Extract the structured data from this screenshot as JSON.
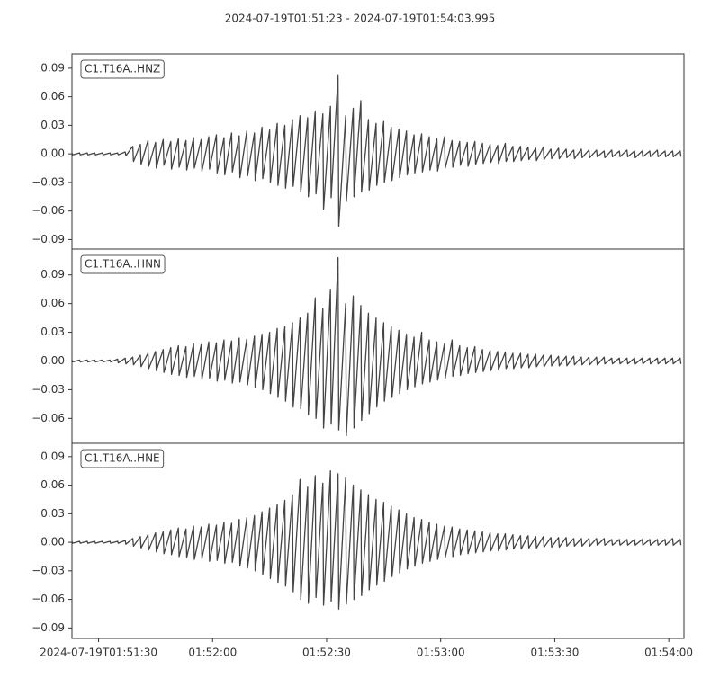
{
  "chart_data": {
    "type": "seismogram",
    "title": "2024-07-19T01:51:23  -  2024-07-19T01:54:03.995",
    "xlim": [
      "01:51:23",
      "01:54:03.995"
    ],
    "xticks": [
      {
        "value": "01:51:30",
        "label": "2024-07-19T01:51:30"
      },
      "01:52:00",
      "01:52:30",
      "01:53:00",
      "01:53:30",
      "01:54:00"
    ],
    "x": [
      "01:51:23",
      "01:51:25",
      "01:51:27",
      "01:51:29",
      "01:51:31",
      "01:51:33",
      "01:51:35",
      "01:51:37",
      "01:51:39",
      "01:51:41",
      "01:51:43",
      "01:51:45",
      "01:51:47",
      "01:51:49",
      "01:51:51",
      "01:51:53",
      "01:51:55",
      "01:51:57",
      "01:51:59",
      "01:52:01",
      "01:52:03",
      "01:52:05",
      "01:52:07",
      "01:52:09",
      "01:52:11",
      "01:52:13",
      "01:52:15",
      "01:52:17",
      "01:52:19",
      "01:52:21",
      "01:52:23",
      "01:52:25",
      "01:52:27",
      "01:52:29",
      "01:52:31",
      "01:52:33",
      "01:52:35",
      "01:52:37",
      "01:52:39",
      "01:52:41",
      "01:52:43",
      "01:52:45",
      "01:52:47",
      "01:52:49",
      "01:52:51",
      "01:52:53",
      "01:52:55",
      "01:52:57",
      "01:52:59",
      "01:53:01",
      "01:53:03",
      "01:53:05",
      "01:53:07",
      "01:53:09",
      "01:53:11",
      "01:53:13",
      "01:53:15",
      "01:53:17",
      "01:53:19",
      "01:53:21",
      "01:53:23",
      "01:53:25",
      "01:53:27",
      "01:53:29",
      "01:53:31",
      "01:53:33",
      "01:53:35",
      "01:53:37",
      "01:53:39",
      "01:53:41",
      "01:53:43",
      "01:53:45",
      "01:53:47",
      "01:53:49",
      "01:53:51",
      "01:53:53",
      "01:53:55",
      "01:53:57",
      "01:53:59",
      "01:54:01",
      "01:54:03"
    ],
    "panels": [
      {
        "label": "C1.T16A..HNZ",
        "color": "#444444",
        "ylim": [
          -0.1,
          0.105
        ],
        "yticks": [
          0.09,
          0.06,
          0.03,
          {
            "value": 0,
            "label": "0.00"
          },
          {
            "value": -0.03,
            "label": "−0.03"
          },
          {
            "value": -0.06,
            "label": "−0.06"
          },
          {
            "value": -0.09,
            "label": "−0.09"
          }
        ],
        "upper": [
          0.001,
          0.001,
          0.001,
          0.001,
          0.001,
          0.001,
          0.001,
          0.002,
          0.008,
          0.01,
          0.014,
          0.012,
          0.015,
          0.013,
          0.016,
          0.014,
          0.017,
          0.015,
          0.018,
          0.02,
          0.017,
          0.022,
          0.019,
          0.024,
          0.022,
          0.028,
          0.025,
          0.032,
          0.03,
          0.036,
          0.04,
          0.038,
          0.045,
          0.042,
          0.05,
          0.083,
          0.04,
          0.048,
          0.056,
          0.036,
          0.032,
          0.034,
          0.028,
          0.026,
          0.024,
          0.02,
          0.021,
          0.018,
          0.016,
          0.018,
          0.014,
          0.013,
          0.012,
          0.013,
          0.011,
          0.01,
          0.009,
          0.011,
          0.008,
          0.008,
          0.007,
          0.006,
          0.007,
          0.005,
          0.006,
          0.005,
          0.004,
          0.005,
          0.004,
          0.004,
          0.003,
          0.004,
          0.003,
          0.004,
          0.003,
          0.003,
          0.003,
          0.004,
          0.003,
          0.003,
          0.003
        ],
        "lower": [
          -0.001,
          -0.001,
          -0.001,
          -0.001,
          -0.001,
          -0.001,
          -0.001,
          -0.002,
          -0.008,
          -0.011,
          -0.013,
          -0.015,
          -0.012,
          -0.016,
          -0.014,
          -0.017,
          -0.015,
          -0.018,
          -0.016,
          -0.02,
          -0.022,
          -0.019,
          -0.025,
          -0.023,
          -0.028,
          -0.026,
          -0.03,
          -0.033,
          -0.036,
          -0.034,
          -0.04,
          -0.045,
          -0.042,
          -0.058,
          -0.046,
          -0.076,
          -0.05,
          -0.045,
          -0.04,
          -0.038,
          -0.033,
          -0.03,
          -0.028,
          -0.025,
          -0.022,
          -0.02,
          -0.019,
          -0.017,
          -0.018,
          -0.015,
          -0.014,
          -0.012,
          -0.013,
          -0.011,
          -0.01,
          -0.009,
          -0.01,
          -0.008,
          -0.008,
          -0.007,
          -0.006,
          -0.007,
          -0.006,
          -0.005,
          -0.005,
          -0.004,
          -0.005,
          -0.004,
          -0.004,
          -0.003,
          -0.004,
          -0.003,
          -0.003,
          -0.003,
          -0.004,
          -0.003,
          -0.003,
          -0.003,
          -0.003,
          -0.003,
          -0.003
        ]
      },
      {
        "label": "C1.T16A..HNN",
        "color": "#444444",
        "ylim": [
          -0.086,
          0.117
        ],
        "yticks": [
          0.09,
          0.06,
          0.03,
          {
            "value": 0,
            "label": "0.00"
          },
          {
            "value": -0.03,
            "label": "−0.03"
          },
          {
            "value": -0.06,
            "label": "−0.06"
          }
        ],
        "upper": [
          0.001,
          0.001,
          0.001,
          0.001,
          0.001,
          0.001,
          0.002,
          0.003,
          0.004,
          0.006,
          0.008,
          0.01,
          0.012,
          0.014,
          0.016,
          0.015,
          0.018,
          0.017,
          0.02,
          0.019,
          0.022,
          0.021,
          0.024,
          0.023,
          0.026,
          0.028,
          0.03,
          0.034,
          0.036,
          0.04,
          0.045,
          0.05,
          0.066,
          0.055,
          0.075,
          0.108,
          0.06,
          0.068,
          0.058,
          0.05,
          0.045,
          0.04,
          0.036,
          0.032,
          0.028,
          0.025,
          0.03,
          0.022,
          0.02,
          0.018,
          0.022,
          0.016,
          0.014,
          0.015,
          0.012,
          0.011,
          0.01,
          0.009,
          0.008,
          0.008,
          0.007,
          0.007,
          0.006,
          0.006,
          0.005,
          0.005,
          0.005,
          0.004,
          0.004,
          0.004,
          0.004,
          0.003,
          0.003,
          0.003,
          0.003,
          0.003,
          0.003,
          0.003,
          0.003,
          0.003,
          0.003
        ],
        "lower": [
          -0.001,
          -0.001,
          -0.001,
          -0.001,
          -0.001,
          -0.001,
          -0.002,
          -0.003,
          -0.004,
          -0.006,
          -0.008,
          -0.01,
          -0.012,
          -0.014,
          -0.015,
          -0.017,
          -0.016,
          -0.019,
          -0.018,
          -0.021,
          -0.02,
          -0.023,
          -0.022,
          -0.025,
          -0.028,
          -0.03,
          -0.034,
          -0.038,
          -0.042,
          -0.048,
          -0.05,
          -0.056,
          -0.06,
          -0.07,
          -0.066,
          -0.072,
          -0.078,
          -0.07,
          -0.062,
          -0.055,
          -0.048,
          -0.042,
          -0.038,
          -0.034,
          -0.03,
          -0.027,
          -0.024,
          -0.022,
          -0.02,
          -0.018,
          -0.016,
          -0.015,
          -0.013,
          -0.012,
          -0.011,
          -0.01,
          -0.009,
          -0.008,
          -0.008,
          -0.007,
          -0.007,
          -0.006,
          -0.006,
          -0.005,
          -0.005,
          -0.005,
          -0.004,
          -0.004,
          -0.004,
          -0.004,
          -0.003,
          -0.003,
          -0.003,
          -0.003,
          -0.003,
          -0.003,
          -0.003,
          -0.003,
          -0.003,
          -0.003,
          -0.003
        ]
      },
      {
        "label": "C1.T16A..HNE",
        "color": "#444444",
        "ylim": [
          -0.101,
          0.104
        ],
        "yticks": [
          0.09,
          0.06,
          0.03,
          {
            "value": 0,
            "label": "0.00"
          },
          {
            "value": -0.03,
            "label": "−0.03"
          },
          {
            "value": -0.06,
            "label": "−0.06"
          },
          {
            "value": -0.09,
            "label": "−0.09"
          }
        ],
        "upper": [
          0.001,
          0.001,
          0.001,
          0.001,
          0.001,
          0.001,
          0.001,
          0.002,
          0.004,
          0.006,
          0.008,
          0.01,
          0.011,
          0.013,
          0.015,
          0.014,
          0.017,
          0.016,
          0.019,
          0.018,
          0.021,
          0.02,
          0.024,
          0.026,
          0.028,
          0.032,
          0.036,
          0.04,
          0.044,
          0.05,
          0.066,
          0.058,
          0.07,
          0.062,
          0.075,
          0.072,
          0.068,
          0.06,
          0.055,
          0.05,
          0.045,
          0.042,
          0.038,
          0.034,
          0.03,
          0.026,
          0.024,
          0.021,
          0.019,
          0.017,
          0.016,
          0.014,
          0.013,
          0.012,
          0.011,
          0.01,
          0.009,
          0.009,
          0.008,
          0.007,
          0.007,
          0.006,
          0.006,
          0.005,
          0.005,
          0.005,
          0.004,
          0.004,
          0.004,
          0.004,
          0.004,
          0.003,
          0.003,
          0.003,
          0.003,
          0.003,
          0.003,
          0.003,
          0.003,
          0.004,
          0.003
        ],
        "lower": [
          -0.001,
          -0.001,
          -0.001,
          -0.001,
          -0.001,
          -0.001,
          -0.001,
          -0.002,
          -0.004,
          -0.006,
          -0.008,
          -0.01,
          -0.012,
          -0.013,
          -0.015,
          -0.016,
          -0.018,
          -0.017,
          -0.02,
          -0.019,
          -0.022,
          -0.021,
          -0.025,
          -0.027,
          -0.03,
          -0.034,
          -0.038,
          -0.042,
          -0.046,
          -0.052,
          -0.06,
          -0.064,
          -0.058,
          -0.066,
          -0.062,
          -0.07,
          -0.065,
          -0.06,
          -0.056,
          -0.05,
          -0.045,
          -0.041,
          -0.036,
          -0.032,
          -0.028,
          -0.025,
          -0.022,
          -0.02,
          -0.018,
          -0.016,
          -0.015,
          -0.013,
          -0.012,
          -0.011,
          -0.01,
          -0.009,
          -0.009,
          -0.008,
          -0.007,
          -0.007,
          -0.006,
          -0.006,
          -0.005,
          -0.005,
          -0.005,
          -0.004,
          -0.004,
          -0.004,
          -0.004,
          -0.003,
          -0.003,
          -0.003,
          -0.003,
          -0.003,
          -0.003,
          -0.003,
          -0.003,
          -0.003,
          -0.003,
          -0.003,
          -0.003
        ]
      }
    ]
  }
}
